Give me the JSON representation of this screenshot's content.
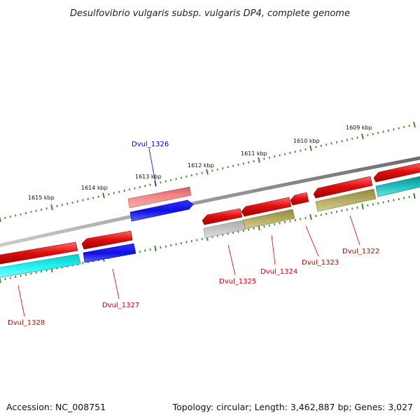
{
  "title": "Desulfovibrio vulgaris subsp. vulgaris DP4, complete genome",
  "accession": "Accession: NC_008751",
  "summary": "Topology: circular; Length: 3,462,887 bp; Genes: 3,027",
  "colors": {
    "backbone": "#8a8a8a",
    "tick": "#2e7d1e",
    "forward": "#e01010",
    "forward_light": "#f08080",
    "reverse_blue": "#1010e0",
    "cyan": "#18e0e0",
    "olive": "#b0a860",
    "grey": "#b8b8b8",
    "teal": "#20b8b8",
    "label_red": "#cc0000",
    "label_blue": "#0000cc"
  },
  "scale_labels": [
    "1615 kbp",
    "1614 kbp",
    "1613 kbp",
    "1612 kbp",
    "1611 kbp",
    "1610 kbp",
    "1609 kbp"
  ],
  "gene_labels": {
    "dvul_1326": "Dvul_1326",
    "dvul_1328": "Dvul_1328",
    "dvul_1327": "Dvul_1327",
    "dvul_1325": "Dvul_1325",
    "dvul_1324": "Dvul_1324",
    "dvul_1323": "Dvul_1323",
    "dvul_1322": "Dvul_1322"
  },
  "features": [
    {
      "id": "dvul_1328",
      "strand": "+",
      "feature_color": "forward",
      "cds_color": "cyan",
      "label_color": "label_red"
    },
    {
      "id": "dvul_1327",
      "strand": "-",
      "feature_color": "forward",
      "cds_color": "reverse_blue",
      "label_color": "label_red"
    },
    {
      "id": "dvul_1326",
      "strand": "+",
      "feature_color": "forward_light",
      "cds_color": "reverse_blue",
      "label_color": "label_blue"
    },
    {
      "id": "dvul_1325",
      "strand": "-",
      "feature_color": "forward",
      "cds_color": "grey",
      "label_color": "label_red"
    },
    {
      "id": "dvul_1324",
      "strand": "-",
      "feature_color": "forward",
      "cds_color": "olive",
      "label_color": "label_red"
    },
    {
      "id": "dvul_1323",
      "strand": "-",
      "feature_color": "forward",
      "label_color": "label_red"
    },
    {
      "id": "dvul_1322",
      "strand": "-",
      "feature_color": "forward",
      "cds_color": "olive",
      "label_color": "label_red"
    }
  ]
}
